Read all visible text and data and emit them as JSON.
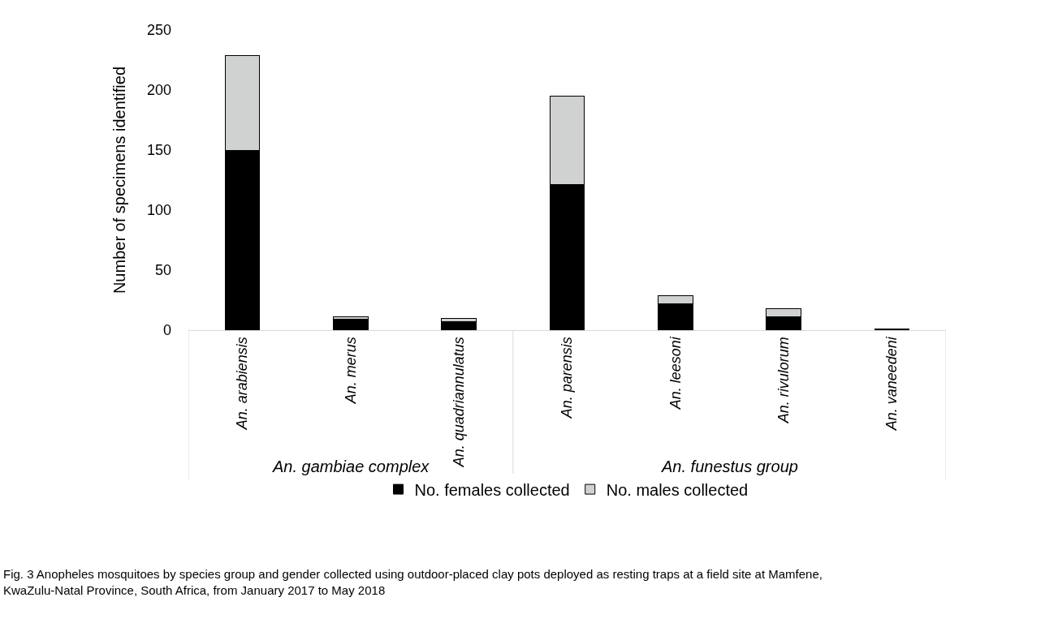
{
  "chart_data": {
    "type": "bar",
    "stacked": true,
    "ylabel": "Number of specimens identified",
    "categories": [
      "An. arabiensis",
      "An. merus",
      "An. quadriannulatus",
      "An. parensis",
      "An. leesoni",
      "An. rivulorum",
      "An. vaneedeni"
    ],
    "series": [
      {
        "name": "No. females collected",
        "color": "#000000",
        "values": [
          150,
          9,
          7,
          121,
          22,
          11,
          1
        ]
      },
      {
        "name": "No. males collected",
        "color": "#d0d2d1",
        "values": [
          79,
          2,
          3,
          74,
          7,
          7,
          0
        ]
      }
    ],
    "ylim": [
      0,
      250
    ],
    "yticks": [
      0,
      50,
      100,
      150,
      200,
      250
    ],
    "legend": "bottom",
    "annotations": [
      "An. gambiae complex",
      "An. funestus group",
      "Fig. 3 Anopheles mosquitoes by species group and gender collected using outdoor-placed clay pots deployed as resting traps at a field site at Mamfene, KwaZulu-Natal Province, South Africa, from January 2017 to May 2018"
    ]
  }
}
